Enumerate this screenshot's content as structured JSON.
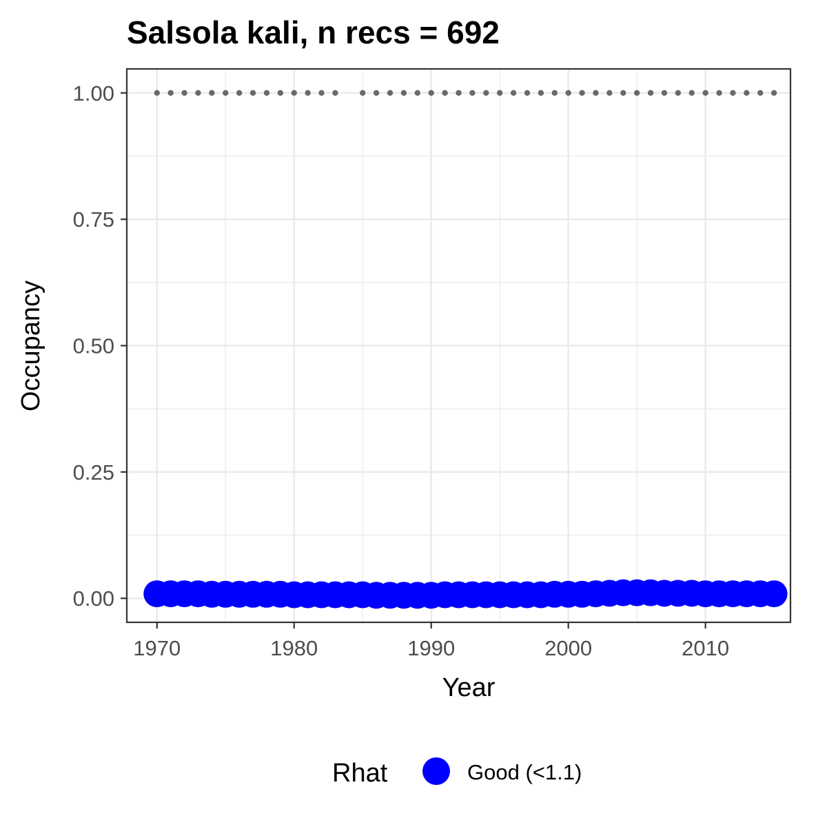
{
  "chart_data": {
    "type": "scatter",
    "title": "Salsola kali, n recs = 692",
    "xlabel": "Year",
    "ylabel": "Occupancy",
    "xlim": [
      1967.8,
      2016.2
    ],
    "ylim": [
      -0.0475,
      1.0475
    ],
    "x_ticks": [
      1970,
      1980,
      1990,
      2000,
      2010
    ],
    "x_tick_labels": [
      "1970",
      "1980",
      "1990",
      "2000",
      "2010"
    ],
    "y_ticks": [
      0,
      0.25,
      0.5,
      0.75,
      1
    ],
    "y_tick_labels": [
      "0.00",
      "0.25",
      "0.50",
      "0.75",
      "1.00"
    ],
    "grid": true,
    "legend": {
      "position": "bottom",
      "title": "Rhat",
      "entries": [
        {
          "label": "Good (<1.1)",
          "color": "#0000ff"
        }
      ]
    },
    "series": [
      {
        "name": "Good (<1.1)",
        "color": "#0000ff",
        "x": [
          1970,
          1971,
          1972,
          1973,
          1974,
          1975,
          1976,
          1977,
          1978,
          1979,
          1980,
          1981,
          1982,
          1983,
          1984,
          1985,
          1986,
          1987,
          1988,
          1989,
          1990,
          1991,
          1992,
          1993,
          1994,
          1995,
          1996,
          1997,
          1998,
          1999,
          2000,
          2001,
          2002,
          2003,
          2004,
          2005,
          2006,
          2007,
          2008,
          2009,
          2010,
          2011,
          2012,
          2013,
          2014,
          2015
        ],
        "y": [
          0.009,
          0.009,
          0.009,
          0.009,
          0.008,
          0.008,
          0.008,
          0.008,
          0.008,
          0.008,
          0.007,
          0.007,
          0.007,
          0.007,
          0.007,
          0.007,
          0.006,
          0.006,
          0.006,
          0.006,
          0.006,
          0.007,
          0.007,
          0.007,
          0.007,
          0.007,
          0.007,
          0.007,
          0.007,
          0.008,
          0.008,
          0.008,
          0.009,
          0.01,
          0.011,
          0.011,
          0.011,
          0.01,
          0.01,
          0.01,
          0.009,
          0.009,
          0.009,
          0.009,
          0.009,
          0.009
        ]
      },
      {
        "name": "",
        "color": "#696969",
        "x": [
          1970,
          1971,
          1972,
          1973,
          1974,
          1975,
          1976,
          1977,
          1978,
          1979,
          1980,
          1981,
          1982,
          1983,
          1985,
          1986,
          1987,
          1988,
          1989,
          1990,
          1991,
          1992,
          1993,
          1994,
          1995,
          1996,
          1997,
          1998,
          1999,
          2000,
          2001,
          2002,
          2003,
          2004,
          2005,
          2006,
          2007,
          2008,
          2009,
          2010,
          2011,
          2012,
          2013,
          2014,
          2015
        ],
        "y": [
          1,
          1,
          1,
          1,
          1,
          1,
          1,
          1,
          1,
          1,
          1,
          1,
          1,
          1,
          1,
          1,
          1,
          1,
          1,
          1,
          1,
          1,
          1,
          1,
          1,
          1,
          1,
          1,
          1,
          1,
          1,
          1,
          1,
          1,
          1,
          1,
          1,
          1,
          1,
          1,
          1,
          1,
          1,
          1,
          1
        ]
      }
    ]
  }
}
